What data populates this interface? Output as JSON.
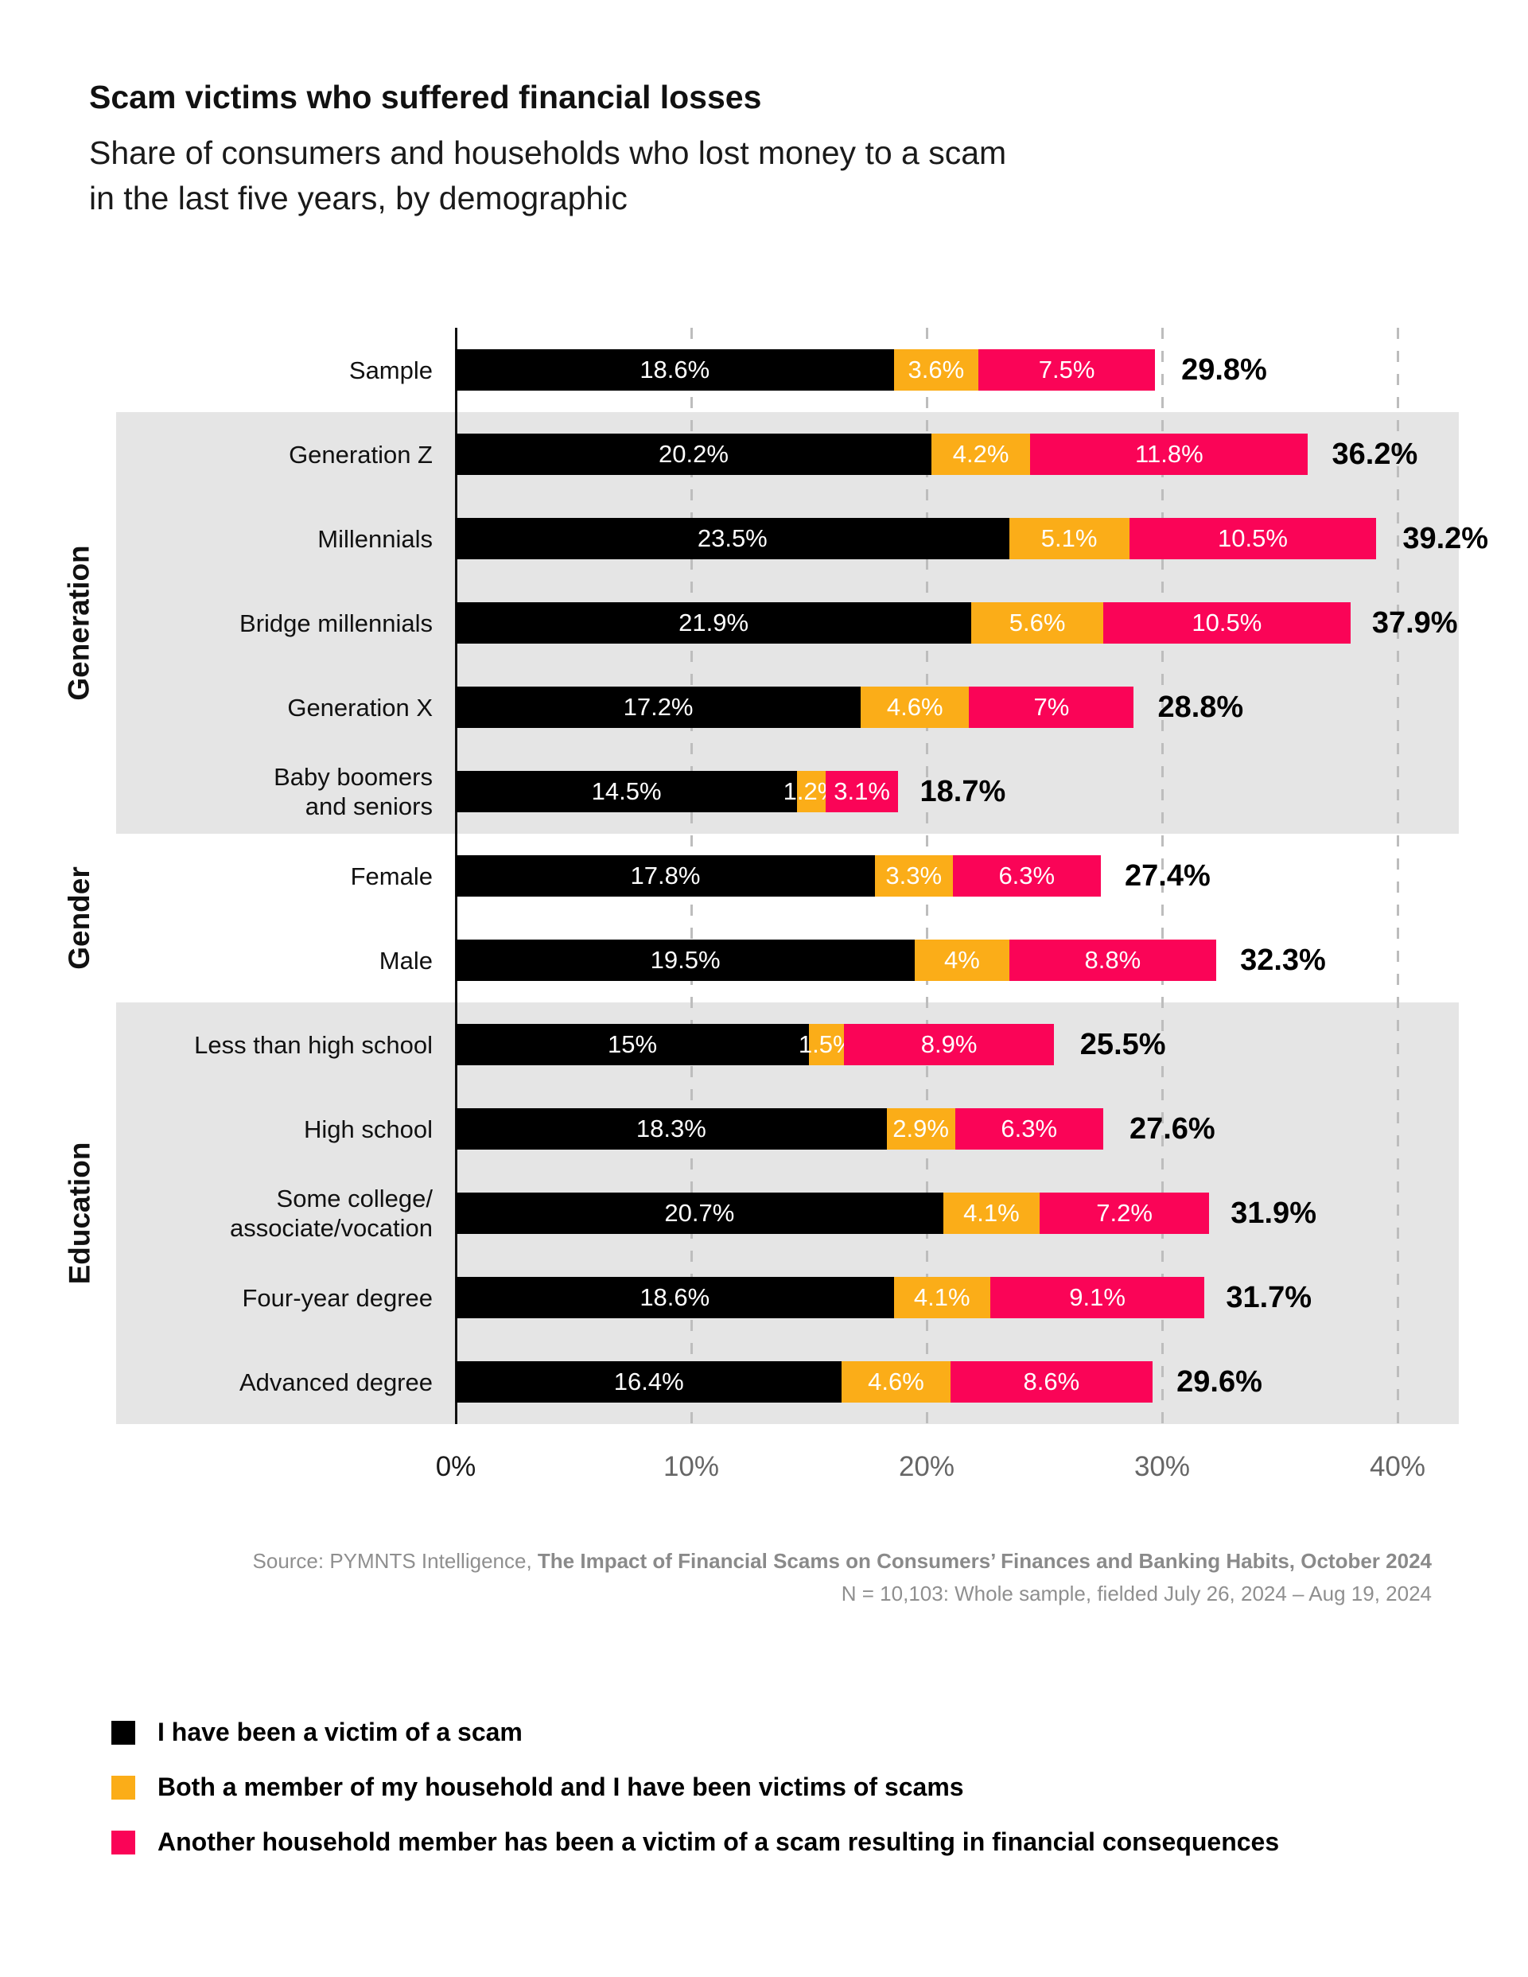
{
  "title": "Scam victims who suffered financial losses",
  "subtitle": "Share of consumers and households who lost money to a scam\nin the last five years, by demographic",
  "source": {
    "line1_prefix": "Source: PYMNTS Intelligence, ",
    "line1_bold": "The Impact of Financial Scams on Consumers’ Finances and Banking Habits, October 2024",
    "line2": "N = 10,103: Whole sample, fielded July 26, 2024 – Aug 19, 2024"
  },
  "colors": {
    "band": "#E5E5E5",
    "grid": "#BDBDBD",
    "axis": "#111111",
    "black_series": "#000000",
    "yellow_series": "#FBAD18",
    "pink_series": "#FA0457"
  },
  "chart_data": {
    "type": "bar",
    "orientation": "horizontal",
    "stacked": true,
    "xlim": [
      0,
      40
    ],
    "xticks": [
      "0%",
      "10%",
      "20%",
      "30%",
      "40%"
    ],
    "grid": "dashed-vertical",
    "legend_position": "bottom-left",
    "series": [
      {
        "name": "I have been a victim of a scam",
        "color": "#000000"
      },
      {
        "name": "Both a member of my household and I have been victims of scams",
        "color": "#FBAD18"
      },
      {
        "name": "Another household member has been a victim of a scam resulting in financial consequences",
        "color": "#FA0457"
      }
    ],
    "groups": [
      {
        "label": "",
        "shaded": false,
        "rows": [
          {
            "category": "Sample",
            "values": [
              18.6,
              3.6,
              7.5
            ],
            "labels": [
              "18.6%",
              "3.6%",
              "7.5%"
            ],
            "total": 29.8,
            "total_label": "29.8%"
          }
        ]
      },
      {
        "label": "Generation",
        "shaded": true,
        "rows": [
          {
            "category": "Generation Z",
            "values": [
              20.2,
              4.2,
              11.8
            ],
            "labels": [
              "20.2%",
              "4.2%",
              "11.8%"
            ],
            "total": 36.2,
            "total_label": "36.2%"
          },
          {
            "category": "Millennials",
            "values": [
              23.5,
              5.1,
              10.5
            ],
            "labels": [
              "23.5%",
              "5.1%",
              "10.5%"
            ],
            "total": 39.2,
            "total_label": "39.2%"
          },
          {
            "category": "Bridge millennials",
            "values": [
              21.9,
              5.6,
              10.5
            ],
            "labels": [
              "21.9%",
              "5.6%",
              "10.5%"
            ],
            "total": 37.9,
            "total_label": "37.9%"
          },
          {
            "category": "Generation X",
            "values": [
              17.2,
              4.6,
              7.0
            ],
            "labels": [
              "17.2%",
              "4.6%",
              "7%"
            ],
            "total": 28.8,
            "total_label": "28.8%"
          },
          {
            "category": "Baby boomers\nand seniors",
            "values": [
              14.5,
              1.2,
              3.1
            ],
            "labels": [
              "14.5%",
              "1.2%",
              "3.1%"
            ],
            "total": 18.7,
            "total_label": "18.7%"
          }
        ]
      },
      {
        "label": "Gender",
        "shaded": false,
        "rows": [
          {
            "category": "Female",
            "values": [
              17.8,
              3.3,
              6.3
            ],
            "labels": [
              "17.8%",
              "3.3%",
              "6.3%"
            ],
            "total": 27.4,
            "total_label": "27.4%"
          },
          {
            "category": "Male",
            "values": [
              19.5,
              4.0,
              8.8
            ],
            "labels": [
              "19.5%",
              "4%",
              "8.8%"
            ],
            "total": 32.3,
            "total_label": "32.3%"
          }
        ]
      },
      {
        "label": "Education",
        "shaded": true,
        "rows": [
          {
            "category": "Less than high school",
            "values": [
              15.0,
              1.5,
              8.9
            ],
            "labels": [
              "15%",
              "1.5%",
              "8.9%"
            ],
            "total": 25.5,
            "total_label": "25.5%"
          },
          {
            "category": "High school",
            "values": [
              18.3,
              2.9,
              6.3
            ],
            "labels": [
              "18.3%",
              "2.9%",
              "6.3%"
            ],
            "total": 27.6,
            "total_label": "27.6%"
          },
          {
            "category": "Some college/\nassociate/vocation",
            "values": [
              20.7,
              4.1,
              7.2
            ],
            "labels": [
              "20.7%",
              "4.1%",
              "7.2%"
            ],
            "total": 31.9,
            "total_label": "31.9%"
          },
          {
            "category": "Four-year degree",
            "values": [
              18.6,
              4.1,
              9.1
            ],
            "labels": [
              "18.6%",
              "4.1%",
              "9.1%"
            ],
            "total": 31.7,
            "total_label": "31.7%"
          },
          {
            "category": "Advanced degree",
            "values": [
              16.4,
              4.6,
              8.6
            ],
            "labels": [
              "16.4%",
              "4.6%",
              "8.6%"
            ],
            "total": 29.6,
            "total_label": "29.6%"
          }
        ]
      }
    ]
  }
}
